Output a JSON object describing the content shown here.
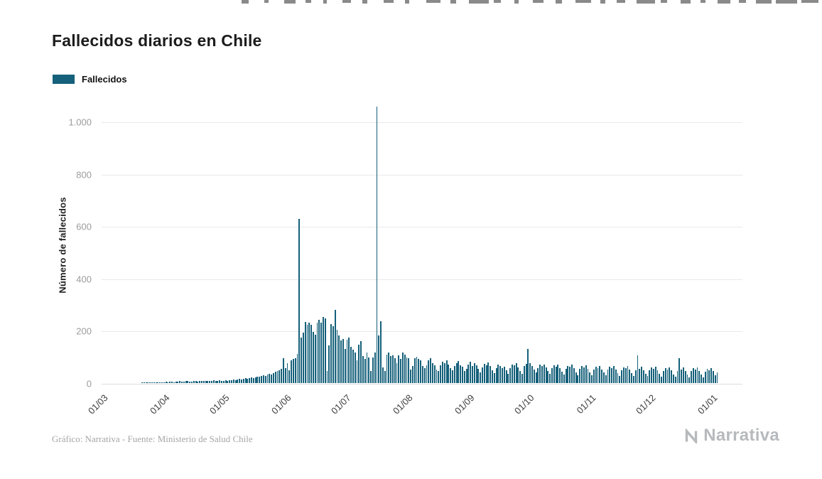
{
  "chart_data": {
    "type": "bar",
    "title": "Fallecidos diarios en Chile",
    "series_name": "Fallecidos",
    "ylabel": "Número de fallecidos",
    "ylim": [
      0,
      1100
    ],
    "grid": true,
    "legend_position": "top-left",
    "colors": {
      "bar": "#15607a",
      "grid": "#e9e9e9"
    },
    "y_ticks": [
      {
        "value": 0,
        "label": "0"
      },
      {
        "value": 200,
        "label": "200"
      },
      {
        "value": 400,
        "label": "400"
      },
      {
        "value": 600,
        "label": "600"
      },
      {
        "value": 800,
        "label": "800"
      },
      {
        "value": 1000,
        "label": "1.000"
      }
    ],
    "x_ticks": [
      {
        "label": "01/03",
        "day_index": 0
      },
      {
        "label": "01/04",
        "day_index": 31
      },
      {
        "label": "01/05",
        "day_index": 61
      },
      {
        "label": "01/06",
        "day_index": 92
      },
      {
        "label": "01/07",
        "day_index": 122
      },
      {
        "label": "01/08",
        "day_index": 153
      },
      {
        "label": "01/09",
        "day_index": 184
      },
      {
        "label": "01/10",
        "day_index": 214
      },
      {
        "label": "01/11",
        "day_index": 245
      },
      {
        "label": "01/12",
        "day_index": 275
      },
      {
        "label": "01/01",
        "day_index": 306
      }
    ],
    "x_domain_days": 322,
    "frequency": "daily",
    "months_order": [
      "2020-03",
      "2020-04",
      "2020-05",
      "2020-06",
      "2020-07",
      "2020-08",
      "2020-09",
      "2020-10",
      "2020-11",
      "2020-12",
      "2021-01"
    ],
    "monthly_values": {
      "2020-03": [
        0,
        0,
        0,
        0,
        0,
        0,
        0,
        0,
        0,
        0,
        0,
        0,
        0,
        0,
        0,
        0,
        0,
        0,
        0,
        0,
        1,
        1,
        2,
        1,
        2,
        2,
        2,
        3,
        4,
        2,
        3
      ],
      "2020-04": [
        4,
        5,
        3,
        6,
        5,
        4,
        5,
        6,
        7,
        5,
        6,
        8,
        7,
        6,
        5,
        7,
        8,
        6,
        9,
        7,
        8,
        9,
        8,
        7,
        9,
        10,
        9,
        8,
        10,
        9
      ],
      "2020-05": [
        8,
        10,
        9,
        12,
        11,
        13,
        12,
        14,
        15,
        13,
        16,
        18,
        17,
        19,
        21,
        20,
        23,
        25,
        24,
        28,
        30,
        27,
        32,
        35,
        34,
        39,
        43,
        45,
        49,
        54,
        95
      ],
      "2020-06": [
        57,
        75,
        49,
        87,
        92,
        96,
        111,
        627,
        173,
        192,
        233,
        222,
        231,
        222,
        195,
        184,
        232,
        242,
        231,
        253,
        248,
        45,
        143,
        226,
        217,
        279,
        205,
        181,
        162,
        169
      ],
      "2020-07": [
        130,
        165,
        175,
        139,
        129,
        117,
        87,
        146,
        160,
        104,
        92,
        116,
        98,
        45,
        98,
        117,
        1057,
        182,
        237,
        59,
        45,
        110,
        117,
        104,
        106,
        96,
        75,
        106,
        93,
        116,
        109
      ],
      "2020-08": [
        98,
        95,
        53,
        65,
        95,
        101,
        92,
        86,
        65,
        57,
        68,
        87,
        95,
        77,
        68,
        52,
        45,
        67,
        82,
        76,
        86,
        71,
        58,
        48,
        66,
        77,
        85,
        67,
        62,
        46,
        55
      ],
      "2020-09": [
        72,
        81,
        66,
        75,
        69,
        54,
        42,
        60,
        73,
        68,
        78,
        64,
        50,
        39,
        56,
        71,
        66,
        58,
        62,
        48,
        35,
        58,
        72,
        69,
        75,
        61,
        47,
        36,
        64,
        73
      ],
      "2020-10": [
        130,
        75,
        66,
        52,
        40,
        58,
        70,
        65,
        72,
        60,
        46,
        35,
        57,
        68,
        63,
        71,
        58,
        44,
        33,
        55,
        66,
        62,
        70,
        56,
        42,
        31,
        54,
        65,
        60,
        68,
        54
      ],
      "2020-11": [
        41,
        30,
        52,
        63,
        58,
        66,
        53,
        40,
        29,
        51,
        62,
        57,
        65,
        52,
        38,
        28,
        50,
        61,
        56,
        64,
        51,
        37,
        27,
        49,
        105,
        55,
        63,
        50,
        36,
        26
      ],
      "2020-12": [
        48,
        59,
        54,
        62,
        49,
        35,
        25,
        47,
        58,
        53,
        61,
        48,
        34,
        24,
        46,
        95,
        52,
        60,
        47,
        33,
        23,
        45,
        56,
        51,
        59,
        46,
        32,
        22,
        44,
        55,
        50
      ],
      "2021-01": [
        58,
        45,
        31,
        40
      ]
    }
  },
  "footer": {
    "credit": "Gráfico: Narrativa - Fuente: Ministerio de Salud Chile",
    "logo_text": "Narrativa"
  }
}
